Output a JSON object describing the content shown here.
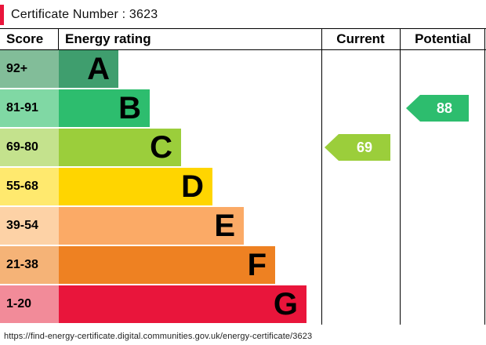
{
  "certificate": {
    "label": "Certificate Number : 3623"
  },
  "header": {
    "score": "Score",
    "energy_rating": "Energy rating",
    "current": "Current",
    "potential": "Potential"
  },
  "chart_data": {
    "type": "bar",
    "title": "Energy efficiency rating chart (EPC)",
    "bands": [
      {
        "range": "92+",
        "letter": "A",
        "color": "#3f9e6e",
        "tint": "#82bd99"
      },
      {
        "range": "81-91",
        "letter": "B",
        "color": "#2dbd6e",
        "tint": "#80d8a4"
      },
      {
        "range": "69-80",
        "letter": "C",
        "color": "#9bce3b",
        "tint": "#c4e28d"
      },
      {
        "range": "55-68",
        "letter": "D",
        "color": "#ffd500",
        "tint": "#ffe96e"
      },
      {
        "range": "39-54",
        "letter": "E",
        "color": "#fbaa66",
        "tint": "#fdd2a6"
      },
      {
        "range": "21-38",
        "letter": "F",
        "color": "#ee8122",
        "tint": "#f5b377"
      },
      {
        "range": "1-20",
        "letter": "G",
        "color": "#e9153b",
        "tint": "#f28b99"
      }
    ],
    "current": {
      "value": 69,
      "band": "C",
      "color": "#9bce3b"
    },
    "potential": {
      "value": 88,
      "band": "B",
      "color": "#2dbd6e"
    }
  },
  "footer": {
    "url": "https://find-energy-certificate.digital.communities.gov.uk/energy-certificate/3623"
  },
  "colors": {
    "accent_red": "#e9153b"
  }
}
